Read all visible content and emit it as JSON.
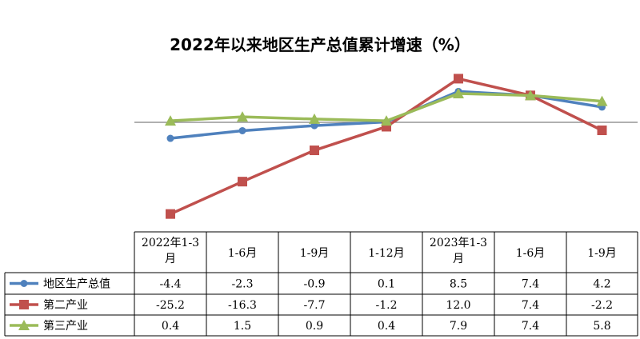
{
  "chart_data": {
    "type": "line",
    "title": "2022年以来地区生产总值累计增速（%）",
    "categories": [
      [
        "2022年1-3",
        "月"
      ],
      [
        "1-6月"
      ],
      [
        "1-9月"
      ],
      [
        "1-12月"
      ],
      [
        "2023年1-3",
        "月"
      ],
      [
        "1-6月"
      ],
      [
        "1-9月"
      ]
    ],
    "series": [
      {
        "name": "地区生产总值",
        "values": [
          -4.4,
          -2.3,
          -0.9,
          0.1,
          8.5,
          7.4,
          4.2
        ],
        "labels": [
          "-4.4",
          "-2.3",
          "-0.9",
          "0.1",
          "8.5",
          "7.4",
          "4.2"
        ],
        "color": "#4f81bd",
        "marker": "circle"
      },
      {
        "name": "第二产业",
        "values": [
          -25.2,
          -16.3,
          -7.7,
          -1.2,
          12.0,
          7.4,
          -2.2
        ],
        "labels": [
          "-25.2",
          "-16.3",
          "-7.7",
          "-1.2",
          "12.0",
          "7.4",
          "-2.2"
        ],
        "color": "#c0504d",
        "marker": "square"
      },
      {
        "name": "第三产业",
        "values": [
          0.4,
          1.5,
          0.9,
          0.4,
          7.9,
          7.4,
          5.8
        ],
        "labels": [
          "0.4",
          "1.5",
          "0.9",
          "0.4",
          "7.9",
          "7.4",
          "5.8"
        ],
        "color": "#9bbb59",
        "marker": "triangle"
      }
    ],
    "ylim": [
      -27,
      14
    ],
    "grid": false,
    "legend": "table-left",
    "data_table": true
  }
}
